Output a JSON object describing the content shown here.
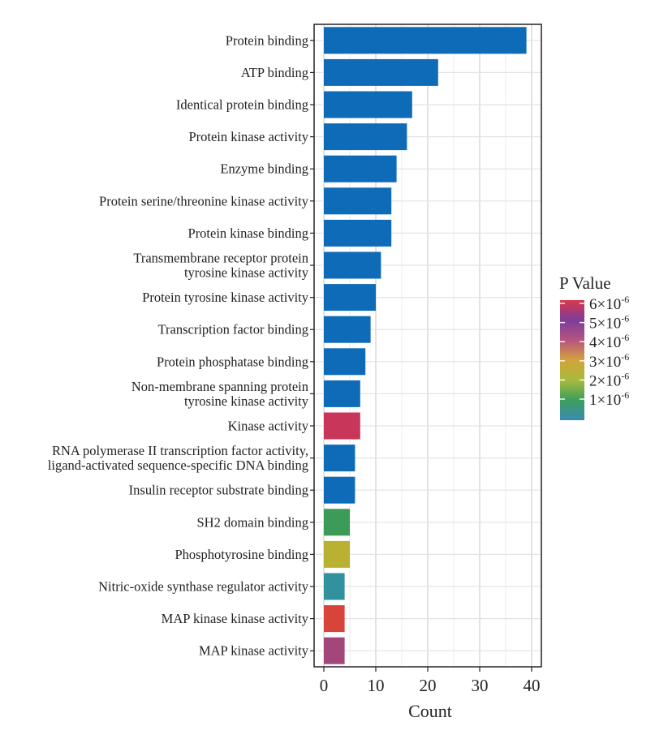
{
  "chart_data": {
    "type": "bar",
    "orientation": "horizontal",
    "xlabel": "Count",
    "ylabel": "",
    "xlim": [
      0,
      40
    ],
    "x_ticks": [
      0,
      10,
      20,
      30,
      40
    ],
    "grid": true,
    "legend_position": "right",
    "categories": [
      [
        "Protein binding"
      ],
      [
        "ATP binding"
      ],
      [
        "Identical protein binding"
      ],
      [
        "Protein kinase activity"
      ],
      [
        "Enzyme binding"
      ],
      [
        "Protein serine/threonine kinase activity"
      ],
      [
        "Protein kinase binding"
      ],
      [
        "Transmembrane receptor protein",
        "tyrosine kinase activity"
      ],
      [
        "Protein tyrosine kinase activity"
      ],
      [
        "Transcription factor binding"
      ],
      [
        "Protein phosphatase binding"
      ],
      [
        "Non-membrane spanning protein",
        "tyrosine kinase activity"
      ],
      [
        "Kinase activity"
      ],
      [
        "RNA polymerase II transcription factor activity,",
        "ligand-activated sequence-specific DNA binding"
      ],
      [
        "Insulin receptor substrate binding"
      ],
      [
        "SH2 domain binding"
      ],
      [
        "Phosphotyrosine binding"
      ],
      [
        "Nitric-oxide synthase regulator activity"
      ],
      [
        "MAP kinase kinase activity"
      ],
      [
        "MAP kinase activity"
      ]
    ],
    "values": [
      39,
      22,
      17,
      16,
      14,
      13,
      13,
      11,
      10,
      9,
      8,
      7,
      7,
      6,
      6,
      5,
      5,
      4,
      4,
      4
    ],
    "bar_colors": [
      "#0e6bb8",
      "#0e6bb8",
      "#0e6bb8",
      "#0e6bb8",
      "#0e6bb8",
      "#0e6bb8",
      "#0e6bb8",
      "#0e6bb8",
      "#0e6bb8",
      "#0e6bb8",
      "#0e6bb8",
      "#0e6bb8",
      "#c8375a",
      "#0e6bb8",
      "#0e6bb8",
      "#3b9b57",
      "#b8b132",
      "#31919e",
      "#d9443a",
      "#a3477a"
    ],
    "color_scale": {
      "title": "P Value",
      "tick_labels": [
        "6×10",
        "5×10",
        "4×10",
        "3×10",
        "2×10",
        "1×10"
      ],
      "tick_exponent": "-6",
      "gradient_top_to_bottom": [
        "#d9384b",
        "#7f3c9b",
        "#b55480",
        "#d4a33a",
        "#a6bb3c",
        "#3d9e5e",
        "#3a8ab3"
      ]
    }
  }
}
